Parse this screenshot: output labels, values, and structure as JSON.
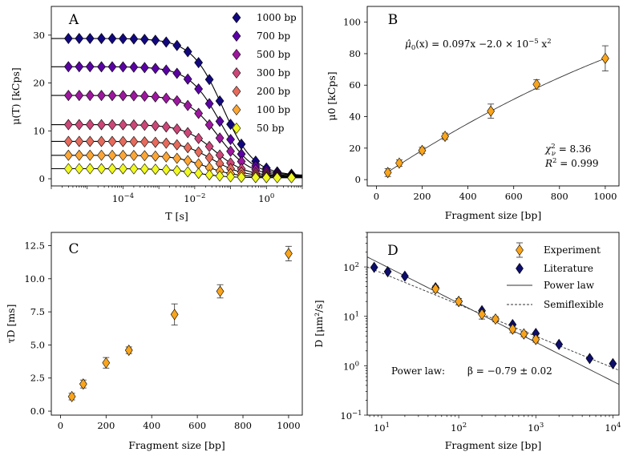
{
  "chart_data": [
    {
      "id": "A",
      "type": "scatter",
      "panel_label": "A",
      "xlabel": "T [s]",
      "ylabel": "μ(T) [kCps]",
      "xscale": "log",
      "xlim": [
        1e-06,
        10
      ],
      "ylim": [
        -1.5,
        36
      ],
      "yticks": [
        0,
        10,
        20,
        30
      ],
      "xticks": [
        {
          "v": 0.0001,
          "label": "10",
          "exp": "−4"
        },
        {
          "v": 0.01,
          "label": "10",
          "exp": "−2"
        },
        {
          "v": 1,
          "label": "10",
          "exp": "0"
        }
      ],
      "legend_position": "top-right",
      "tau_points": [
        3e-06,
        6e-06,
        1.2e-05,
        2.5e-05,
        5e-05,
        0.0001,
        0.0002,
        0.0004,
        0.0008,
        0.0016,
        0.0032,
        0.0064,
        0.0128,
        0.0256,
        0.05,
        0.1,
        0.2,
        0.5,
        1.0,
        2.0,
        5.0
      ],
      "series": [
        {
          "name": "1000 bp",
          "mu0": 29.3,
          "tauD": 0.06,
          "offset": 0.6,
          "color": "#12087e"
        },
        {
          "name": "700 bp",
          "mu0": 23.4,
          "tauD": 0.05,
          "offset": 0.6,
          "color": "#5a02a3"
        },
        {
          "name": "500 bp",
          "mu0": 17.4,
          "tauD": 0.045,
          "offset": 0.5,
          "color": "#9c179e"
        },
        {
          "name": "300 bp",
          "mu0": 11.3,
          "tauD": 0.035,
          "offset": 0.5,
          "color": "#cb4778"
        },
        {
          "name": "200 bp",
          "mu0": 7.8,
          "tauD": 0.03,
          "offset": 0.4,
          "color": "#e56b5d"
        },
        {
          "name": "100 bp",
          "mu0": 4.9,
          "tauD": 0.02,
          "offset": 0.3,
          "color": "#fca636"
        },
        {
          "name": "50 bp",
          "mu0": 2.1,
          "tauD": 0.012,
          "offset": 0.2,
          "color": "#f0f921"
        }
      ]
    },
    {
      "id": "B",
      "type": "scatter",
      "panel_label": "B",
      "xlabel": "Fragment size [bp]",
      "ylabel": "μ0 [kCps]",
      "xlim": [
        -40,
        1060
      ],
      "ylim": [
        -4,
        110
      ],
      "xticks": [
        0,
        200,
        400,
        600,
        800,
        1000
      ],
      "yticks": [
        0,
        20,
        40,
        60,
        80,
        100
      ],
      "x": [
        50,
        100,
        200,
        300,
        500,
        700,
        1000
      ],
      "y": [
        4.5,
        10.5,
        18.5,
        27.5,
        43.5,
        60.5,
        77.0
      ],
      "yerr": [
        2.5,
        2.0,
        2.0,
        2.0,
        4.5,
        3.0,
        8.0
      ],
      "fit": {
        "a": 0.097,
        "b": -2e-05
      },
      "equation": {
        "lhs": "μ̂",
        "lhs_sub": "0",
        "mid": "(x) = 0.097x −2.0 × 10",
        "exp": "−5",
        "tail": " x",
        "tail_exp": "2"
      },
      "stats": [
        {
          "sym": "χ",
          "sup": "2",
          "sub": "ν",
          "rest": " = 8.36"
        },
        {
          "sym": "R",
          "sup": "2",
          "sub": "",
          "rest": " = 0.999"
        }
      ],
      "color": "#f9a41c"
    },
    {
      "id": "C",
      "type": "scatter",
      "panel_label": "C",
      "xlabel": "Fragment size [bp]",
      "ylabel": "τD [ms]",
      "xlim": [
        -40,
        1060
      ],
      "ylim": [
        -0.3,
        13.5
      ],
      "xticks": [
        0,
        200,
        400,
        600,
        800,
        1000
      ],
      "yticks": [
        0.0,
        2.5,
        5.0,
        7.5,
        10.0,
        12.5
      ],
      "x": [
        50,
        100,
        200,
        300,
        500,
        700,
        1000
      ],
      "y": [
        1.1,
        2.05,
        3.65,
        4.6,
        7.3,
        9.05,
        11.9
      ],
      "yerr": [
        0.25,
        0.3,
        0.4,
        0.25,
        0.8,
        0.5,
        0.55
      ],
      "color": "#f9a41c"
    },
    {
      "id": "D",
      "type": "scatter",
      "panel_label": "D",
      "xlabel": "Fragment size [bp]",
      "ylabel": "D [μm²/s]",
      "xscale": "log",
      "yscale": "log",
      "xlim": [
        6.5,
        12000
      ],
      "ylim": [
        0.1,
        500
      ],
      "xticks": [
        {
          "v": 10,
          "label": "10",
          "exp": "1"
        },
        {
          "v": 100,
          "label": "10",
          "exp": "2"
        },
        {
          "v": 1000,
          "label": "10",
          "exp": "3"
        },
        {
          "v": 10000,
          "label": "10",
          "exp": "4"
        }
      ],
      "yticks": [
        {
          "v": 0.1,
          "label": "10",
          "exp": "−1"
        },
        {
          "v": 1,
          "label": "10",
          "exp": "0"
        },
        {
          "v": 10,
          "label": "10",
          "exp": "1"
        },
        {
          "v": 100,
          "label": "10",
          "exp": "2"
        }
      ],
      "legend_position": "top-right",
      "legend": [
        "Experiment",
        "Literature",
        "Power law",
        "Semiflexible"
      ],
      "experiment": {
        "x": [
          50,
          100,
          200,
          300,
          500,
          700,
          1000
        ],
        "y": [
          36,
          20,
          11,
          8.8,
          5.5,
          4.4,
          3.4
        ],
        "yerr_frac": [
          0.15,
          0.15,
          0.2,
          0.12,
          0.15,
          0.12,
          0.12
        ],
        "color": "#f9a41c"
      },
      "literature": {
        "x": [
          8,
          12,
          20,
          50,
          100,
          200,
          500,
          1000,
          2000,
          5000,
          10000
        ],
        "y": [
          98,
          80,
          65,
          38,
          20,
          13,
          6.8,
          4.5,
          2.7,
          1.4,
          1.1
        ],
        "color": "#0d0d6b"
      },
      "power_law": {
        "A": 700,
        "beta": -0.79
      },
      "semiflexible": {
        "A": 330,
        "beta": -0.64
      },
      "annotation": {
        "label": "Power law:",
        "beta": "β = −0.79 ± 0.02"
      }
    }
  ]
}
